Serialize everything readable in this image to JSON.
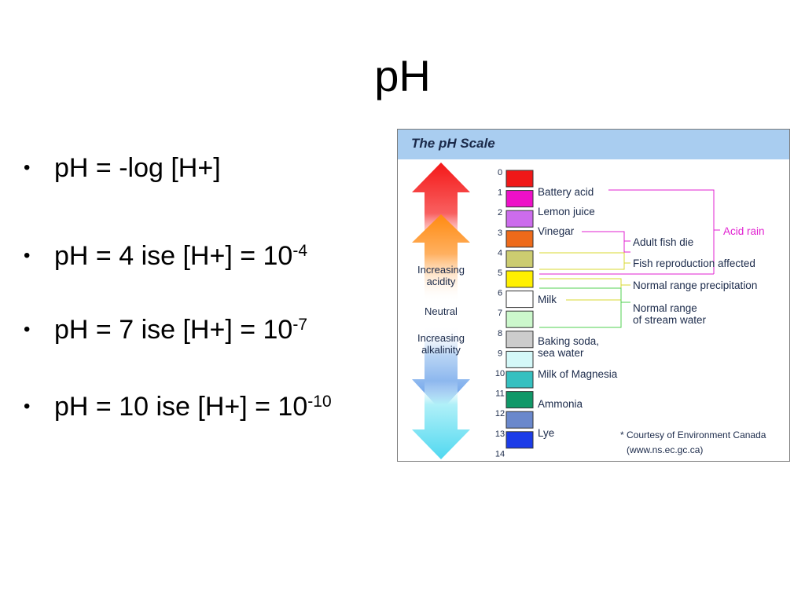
{
  "slide": {
    "title": "pH",
    "bullets": [
      {
        "text": "pH = -log [H+]",
        "sup": ""
      },
      {
        "text": "pH = 4 ise  [H+] = 10",
        "sup": "-4"
      },
      {
        "text": "pH = 7 ise  [H+] = 10",
        "sup": "-7"
      },
      {
        "text": "pH = 10 ise [H+] = 10",
        "sup": "-10"
      }
    ],
    "bullet_char": "•"
  },
  "figure": {
    "title": "The pH Scale",
    "header_color": "#a9cdf0",
    "arrow_labels": {
      "acidity": [
        "Increasing",
        "acidity"
      ],
      "neutral": "Neutral",
      "alkalinity": [
        "Increasing",
        "alkalinity"
      ]
    },
    "scale": [
      {
        "ph": "0",
        "color": "#f01818"
      },
      {
        "ph": "1",
        "color": "#ee10c8"
      },
      {
        "ph": "2",
        "color": "#cc6cec"
      },
      {
        "ph": "3",
        "color": "#ee6a1a"
      },
      {
        "ph": "4",
        "color": "#cccc70"
      },
      {
        "ph": "5",
        "color": "#fff000"
      },
      {
        "ph": "6",
        "color": "#ffffff"
      },
      {
        "ph": "7",
        "color": "#ccf8cc"
      },
      {
        "ph": "8",
        "color": "#cccccc"
      },
      {
        "ph": "9",
        "color": "#d4f8f8"
      },
      {
        "ph": "10",
        "color": "#36c0c0"
      },
      {
        "ph": "11",
        "color": "#109868"
      },
      {
        "ph": "12",
        "color": "#6a88cc"
      },
      {
        "ph": "13",
        "color": "#1c3ce8"
      },
      {
        "ph": "14",
        "color": ""
      }
    ],
    "substances": [
      "Battery acid",
      "Lemon juice",
      "Vinegar",
      "Milk",
      "Baking soda,",
      "sea water",
      "Milk of Magnesia",
      "Ammonia",
      "Lye"
    ],
    "effects": {
      "acid_rain": "Acid rain",
      "adult_fish": "Adult fish die",
      "fish_repro": "Fish reproduction affected",
      "precip": "Normal range precipitation",
      "stream": [
        "Normal range",
        "of stream water"
      ]
    },
    "credit": [
      "* Courtesy of Environment Canada",
      "(www.ns.ec.gc.ca)"
    ],
    "line_colors": {
      "acid_rain": "#e020d0",
      "fish": "#d8d830",
      "stream": "#50d050"
    }
  }
}
